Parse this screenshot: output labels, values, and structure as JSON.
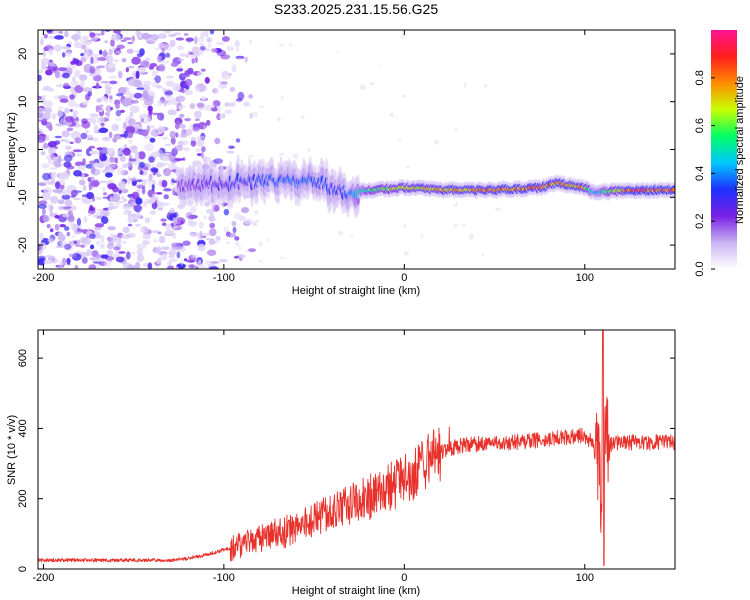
{
  "title": "S233.2025.231.15.56.G25",
  "chart_data": [
    {
      "type": "heatmap",
      "title": "",
      "xlabel": "Height of straight line (km)",
      "ylabel": "Frequency (Hz)",
      "xlim": [
        -203,
        150
      ],
      "ylim": [
        -25,
        25
      ],
      "xticks": [
        -200,
        -100,
        0,
        100
      ],
      "xtick_labels": [
        "-200",
        "-100",
        "0",
        "100"
      ],
      "yticks": [
        -20,
        -10,
        0,
        10,
        20
      ],
      "ytick_labels": [
        "-20",
        "-10",
        "0",
        "10",
        "20"
      ],
      "grid": false,
      "colorbar": {
        "label": "Normalized spectral amplitude",
        "range": [
          0,
          1
        ],
        "ticks": [
          0.0,
          0.2,
          0.4,
          0.6,
          0.8
        ],
        "tick_labels": [
          "0.0",
          "0.2",
          "0.4",
          "0.6",
          "0.8"
        ],
        "colormap": [
          "#ffffff",
          "#c9b3f2",
          "#7a1fe6",
          "#1e32ff",
          "#00c8ff",
          "#00ff64",
          "#c8ff00",
          "#ff8c00",
          "#ff1e1e",
          "#ff1493"
        ]
      },
      "features": {
        "noise_region_x": [
          -203,
          -125
        ],
        "signal_band": [
          {
            "x": -125,
            "freq": -7.5,
            "amp": 0.22
          },
          {
            "x": -100,
            "freq": -7.0,
            "amp": 0.3
          },
          {
            "x": -75,
            "freq": -6.5,
            "amp": 0.35
          },
          {
            "x": -50,
            "freq": -6.5,
            "amp": 0.38
          },
          {
            "x": -35,
            "freq": -9.0,
            "amp": 0.3
          },
          {
            "x": -20,
            "freq": -8.5,
            "amp": 0.6
          },
          {
            "x": 0,
            "freq": -8.0,
            "amp": 0.75
          },
          {
            "x": 25,
            "freq": -8.5,
            "amp": 0.8
          },
          {
            "x": 50,
            "freq": -8.5,
            "amp": 0.85
          },
          {
            "x": 75,
            "freq": -8.0,
            "amp": 0.85
          },
          {
            "x": 85,
            "freq": -7.0,
            "amp": 0.85
          },
          {
            "x": 100,
            "freq": -8.0,
            "amp": 0.8
          },
          {
            "x": 105,
            "freq": -9.0,
            "amp": 0.4
          },
          {
            "x": 125,
            "freq": -8.5,
            "amp": 0.9
          },
          {
            "x": 150,
            "freq": -8.5,
            "amp": 0.9
          }
        ]
      }
    },
    {
      "type": "line",
      "title": "",
      "xlabel": "Height of straight line (km)",
      "ylabel": "SNR (10 * v/v)",
      "xlim": [
        -203,
        150
      ],
      "ylim": [
        0,
        680
      ],
      "xticks": [
        -200,
        -100,
        0,
        100
      ],
      "xtick_labels": [
        "-200",
        "-100",
        "0",
        "100"
      ],
      "yticks": [
        0,
        200,
        400,
        600
      ],
      "ytick_labels": [
        "0",
        "200",
        "400",
        "600"
      ],
      "grid": false,
      "color": "#e8312b",
      "series": [
        {
          "name": "SNR",
          "x": [
            -203,
            -190,
            -175,
            -160,
            -145,
            -130,
            -120,
            -110,
            -100,
            -90,
            -80,
            -70,
            -60,
            -50,
            -40,
            -30,
            -25,
            -20,
            -15,
            -10,
            -5,
            0,
            5,
            10,
            15,
            20,
            25,
            30,
            40,
            50,
            60,
            70,
            80,
            90,
            100,
            104,
            106,
            108,
            109,
            110,
            112,
            115,
            120,
            130,
            140,
            150
          ],
          "values": [
            25,
            25,
            25,
            25,
            25,
            25,
            30,
            40,
            55,
            70,
            85,
            100,
            115,
            140,
            160,
            180,
            200,
            200,
            210,
            230,
            240,
            255,
            270,
            290,
            310,
            330,
            340,
            350,
            355,
            360,
            360,
            365,
            370,
            375,
            380,
            360,
            330,
            300,
            200,
            380,
            365,
            355,
            360,
            360,
            360,
            360
          ]
        }
      ],
      "annotations": [
        {
          "x": 110,
          "peak": 680,
          "trough": 10,
          "label": ""
        }
      ]
    }
  ]
}
